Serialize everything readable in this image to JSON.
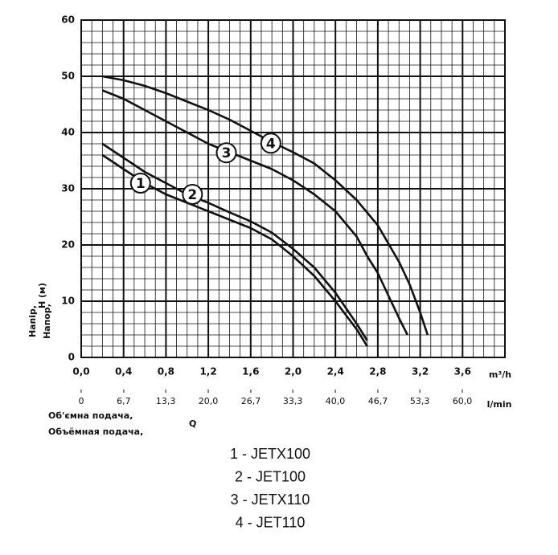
{
  "chart_data": {
    "type": "line",
    "ylabel": [
      "Напір,",
      "Напор,",
      "H (м)"
    ],
    "xlabel": "m³/h",
    "x2label": "l/min",
    "x2title": [
      "Об'ємна подача,",
      "Объёмная подача,",
      "Q"
    ],
    "xlim": [
      0,
      4.0
    ],
    "ylim": [
      0,
      60
    ],
    "x2lim": [
      0,
      66.7
    ],
    "xticks": [
      {
        "value": 0,
        "label": "0,0"
      },
      {
        "value": 0.4,
        "label": "0,4"
      },
      {
        "value": 0.8,
        "label": "0,8"
      },
      {
        "value": 1.2,
        "label": "1,2"
      },
      {
        "value": 1.6,
        "label": "1,6"
      },
      {
        "value": 2.0,
        "label": "2,0"
      },
      {
        "value": 2.4,
        "label": "2,4"
      },
      {
        "value": 2.8,
        "label": "2,8"
      },
      {
        "value": 3.2,
        "label": "3,2"
      },
      {
        "value": 3.6,
        "label": "3,6"
      }
    ],
    "x2ticks": [
      0,
      {
        "value": 6.7,
        "label": "6,7"
      },
      {
        "value": 13.3,
        "label": "13,3"
      },
      {
        "value": 20.0,
        "label": "20,0"
      },
      {
        "value": 26.7,
        "label": "26,7"
      },
      {
        "value": 33.3,
        "label": "33,3"
      },
      {
        "value": 40.0,
        "label": "40,0"
      },
      {
        "value": 46.7,
        "label": "46,7"
      },
      {
        "value": 53.3,
        "label": "53,3"
      },
      {
        "value": 60.0,
        "label": "60,0"
      }
    ],
    "yticks": [
      0,
      10,
      20,
      30,
      40,
      50,
      60
    ],
    "xminorticks": [
      0.1,
      0.2,
      0.3,
      0.5,
      0.6,
      0.7,
      0.9,
      1.0,
      1.1,
      1.3,
      1.4,
      1.5,
      1.7,
      1.8,
      1.9,
      2.1,
      2.2,
      2.3,
      2.5,
      2.6,
      2.7,
      2.9,
      3.0,
      3.1,
      3.3,
      3.4,
      3.5,
      3.7,
      3.8,
      3.9
    ],
    "yminorticks": [
      2,
      4,
      6,
      8,
      12,
      14,
      16,
      18,
      22,
      24,
      26,
      28,
      32,
      34,
      36,
      38,
      42,
      44,
      46,
      48,
      52,
      54,
      56,
      58
    ],
    "grid": true,
    "color": "#111111",
    "series": [
      {
        "name": "1 - JETX100",
        "x": [
          0.2,
          0.4,
          0.6,
          0.8,
          1.0,
          1.2,
          1.4,
          1.6,
          1.8,
          2.0,
          2.2,
          2.4,
          2.6,
          2.7
        ],
        "y": [
          36,
          33.5,
          31,
          29,
          27.5,
          26,
          24.5,
          23,
          21,
          18,
          14.5,
          10,
          5,
          2
        ]
      },
      {
        "name": "2 - JET100",
        "x": [
          0.2,
          0.4,
          0.6,
          0.8,
          1.0,
          1.2,
          1.4,
          1.6,
          1.8,
          2.0,
          2.2,
          2.4,
          2.6,
          2.7
        ],
        "y": [
          38,
          35.5,
          33,
          31,
          29,
          27.5,
          25.8,
          24.2,
          22.2,
          19.3,
          16,
          11.5,
          6,
          3
        ]
      },
      {
        "name": "3 - JETX110",
        "x": [
          0.2,
          0.4,
          0.6,
          0.8,
          1.0,
          1.2,
          1.4,
          1.6,
          1.8,
          2.0,
          2.2,
          2.4,
          2.6,
          2.7,
          2.8,
          2.9,
          3.0,
          3.08
        ],
        "y": [
          47.5,
          46,
          44,
          42,
          40,
          38,
          36.5,
          35,
          33.5,
          31.5,
          29,
          26,
          21.5,
          18,
          15,
          11,
          7,
          4
        ]
      },
      {
        "name": "4 - JET110",
        "x": [
          0.2,
          0.4,
          0.6,
          0.8,
          1.0,
          1.2,
          1.4,
          1.6,
          1.8,
          2.0,
          2.2,
          2.4,
          2.6,
          2.8,
          3.0,
          3.1,
          3.2,
          3.27
        ],
        "y": [
          50,
          49.3,
          48.3,
          47,
          45.5,
          44,
          42.3,
          40.3,
          38.3,
          36.5,
          34.5,
          31.5,
          28,
          23.5,
          17,
          13,
          8,
          4
        ]
      }
    ],
    "annotations": [
      {
        "text": "1",
        "x": 0.56,
        "y": 31
      },
      {
        "text": "2",
        "x": 1.05,
        "y": 29
      },
      {
        "text": "3",
        "x": 1.37,
        "y": 36.4
      },
      {
        "text": "4",
        "x": 1.79,
        "y": 38.1
      }
    ]
  }
}
